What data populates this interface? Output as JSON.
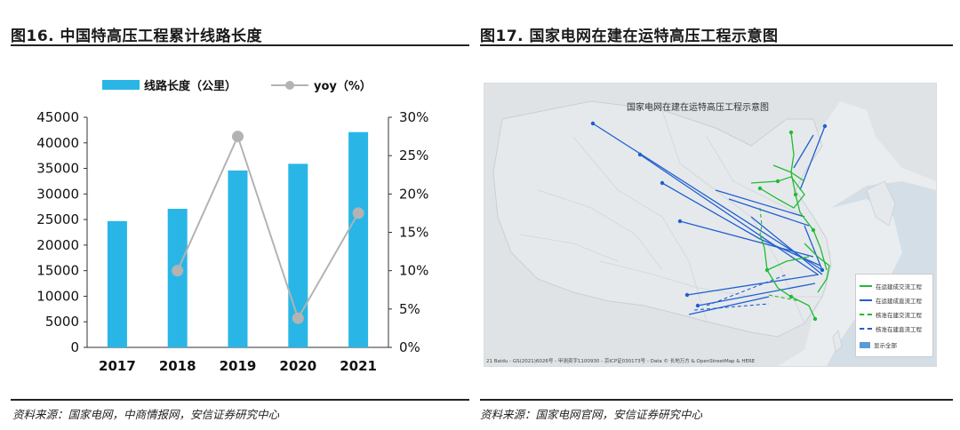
{
  "left": {
    "title": "图16. 中国特高压工程累计线路长度",
    "source": "资料来源：国家电网，中商情报网，安信证券研究中心"
  },
  "right": {
    "title": "图17. 国家电网在建在运特高压工程示意图",
    "source": "资料来源：国家电网官网，安信证券研究中心",
    "map": {
      "title": "国家电网在建在运特高压工程示意图",
      "legend": [
        {
          "label": "在运建成交流工程",
          "color": "#22bb33",
          "style": "solid"
        },
        {
          "label": "在运建成直流工程",
          "color": "#1f5fd0",
          "style": "solid"
        },
        {
          "label": "核准在建交流工程",
          "color": "#22bb33",
          "style": "dashed"
        },
        {
          "label": "核准在建直流工程",
          "color": "#1f5fd0",
          "style": "dashed"
        },
        {
          "label": "显示全部",
          "color": "#5b9bd5",
          "style": "box"
        }
      ],
      "credit": "21 Baidu - GS(2021)6026号 - 甲测资字1100930 - 京ICP证030173号 - Data © 长地万方 & OpenStreetMap & HERE"
    }
  },
  "chart_data": {
    "type": "bar",
    "categories": [
      "2017",
      "2018",
      "2019",
      "2020",
      "2021"
    ],
    "series": [
      {
        "name": "线路长度（公里）",
        "type": "bar",
        "axis": "left",
        "color": "#29b6e6",
        "values": [
          24700,
          27100,
          34600,
          35900,
          42100
        ]
      },
      {
        "name": "yoy（%）",
        "type": "line",
        "axis": "right",
        "color": "#b3b3b3",
        "values": [
          null,
          10,
          27.5,
          3.8,
          17.5
        ]
      }
    ],
    "ylim": [
      0,
      45000
    ],
    "yticks": [
      "0",
      "5000",
      "10000",
      "15000",
      "20000",
      "25000",
      "30000",
      "35000",
      "40000",
      "45000"
    ],
    "y2lim": [
      0,
      30
    ],
    "y2ticks": [
      "0%",
      "5%",
      "10%",
      "15%",
      "20%",
      "25%",
      "30%"
    ],
    "legend_position": "top"
  }
}
